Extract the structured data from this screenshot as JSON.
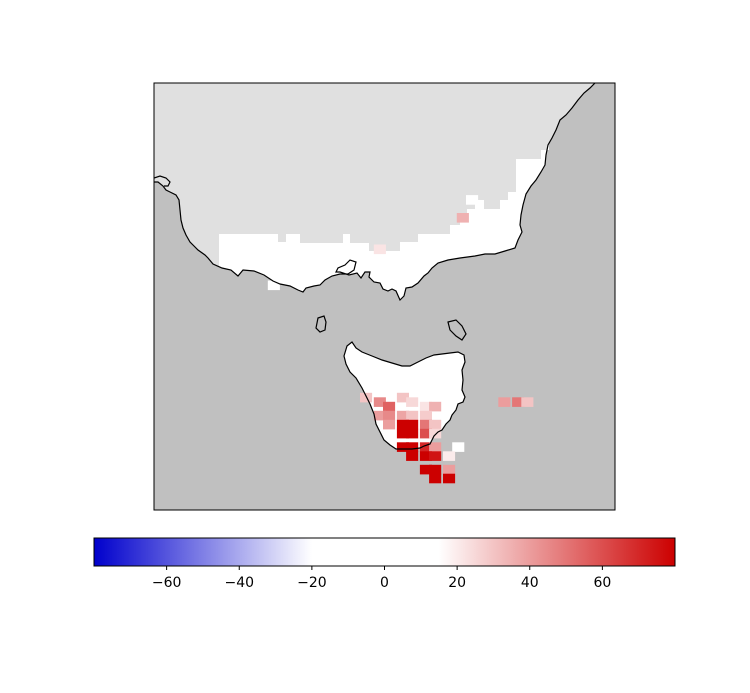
{
  "map": {
    "colors": {
      "ocean": "#c0c0c0",
      "no_data_land": "#e0e0e0",
      "coastline": "#000000",
      "frame": "#000000"
    }
  },
  "colorbar": {
    "min": -80,
    "max": 80,
    "stops": [
      {
        "value": -80,
        "color": "#0000cc"
      },
      {
        "value": -20,
        "color": "#ffffff"
      },
      {
        "value": 15,
        "color": "#ffffff"
      },
      {
        "value": 80,
        "color": "#cc0000"
      }
    ],
    "ticks": [
      "−60",
      "−40",
      "−20",
      "0",
      "20",
      "40",
      "60"
    ],
    "tick_values": [
      -60,
      -40,
      -20,
      0,
      20,
      40,
      60
    ]
  },
  "anomaly_cells": {
    "description_units": "percent",
    "cells": [
      {
        "lon": 146.9,
        "lat": -36.6,
        "value": 12
      },
      {
        "lon": 146.7,
        "lat": -37.0,
        "value": 35
      },
      {
        "lon": 144.9,
        "lat": -37.7,
        "value": 22
      },
      {
        "lon": 142.6,
        "lat": -38.5,
        "value": -15
      },
      {
        "lon": 145.2,
        "lat": -38.3,
        "value": -8
      },
      {
        "lon": 144.6,
        "lat": -41.0,
        "value": 30
      },
      {
        "lon": 144.9,
        "lat": -41.1,
        "value": 45
      },
      {
        "lon": 145.1,
        "lat": -41.2,
        "value": 55
      },
      {
        "lon": 145.4,
        "lat": -41.0,
        "value": 30
      },
      {
        "lon": 145.6,
        "lat": -41.1,
        "value": 25
      },
      {
        "lon": 145.9,
        "lat": -41.2,
        "value": 22
      },
      {
        "lon": 146.1,
        "lat": -41.2,
        "value": 35
      },
      {
        "lon": 147.6,
        "lat": -41.1,
        "value": 40
      },
      {
        "lon": 147.9,
        "lat": -41.1,
        "value": 50
      },
      {
        "lon": 148.1,
        "lat": -41.1,
        "value": 30
      },
      {
        "lon": 144.9,
        "lat": -41.4,
        "value": 40
      },
      {
        "lon": 145.1,
        "lat": -41.4,
        "value": 45
      },
      {
        "lon": 145.4,
        "lat": -41.4,
        "value": 38
      },
      {
        "lon": 145.6,
        "lat": -41.4,
        "value": 30
      },
      {
        "lon": 145.9,
        "lat": -41.4,
        "value": 28
      },
      {
        "lon": 145.1,
        "lat": -41.6,
        "value": 40
      },
      {
        "lon": 145.4,
        "lat": -41.6,
        "value": 80
      },
      {
        "lon": 145.6,
        "lat": -41.6,
        "value": 80
      },
      {
        "lon": 145.9,
        "lat": -41.6,
        "value": 50
      },
      {
        "lon": 146.1,
        "lat": -41.6,
        "value": 30
      },
      {
        "lon": 145.4,
        "lat": -41.8,
        "value": 80
      },
      {
        "lon": 145.6,
        "lat": -41.8,
        "value": 80
      },
      {
        "lon": 145.9,
        "lat": -41.8,
        "value": 60
      },
      {
        "lon": 146.1,
        "lat": -41.8,
        "value": 25
      },
      {
        "lon": 145.4,
        "lat": -42.1,
        "value": 80
      },
      {
        "lon": 145.6,
        "lat": -42.1,
        "value": 80
      },
      {
        "lon": 145.9,
        "lat": -42.1,
        "value": 70
      },
      {
        "lon": 146.1,
        "lat": -42.1,
        "value": 40
      },
      {
        "lon": 146.6,
        "lat": -42.1,
        "value": -12
      },
      {
        "lon": 145.6,
        "lat": -42.3,
        "value": 80
      },
      {
        "lon": 145.9,
        "lat": -42.3,
        "value": 80
      },
      {
        "lon": 146.1,
        "lat": -42.3,
        "value": 75
      },
      {
        "lon": 146.4,
        "lat": -42.3,
        "value": 20
      },
      {
        "lon": 145.9,
        "lat": -42.6,
        "value": 80
      },
      {
        "lon": 146.1,
        "lat": -42.6,
        "value": 80
      },
      {
        "lon": 146.4,
        "lat": -42.6,
        "value": 40
      },
      {
        "lon": 146.1,
        "lat": -42.8,
        "value": 80
      },
      {
        "lon": 146.4,
        "lat": -42.8,
        "value": 80
      }
    ]
  }
}
